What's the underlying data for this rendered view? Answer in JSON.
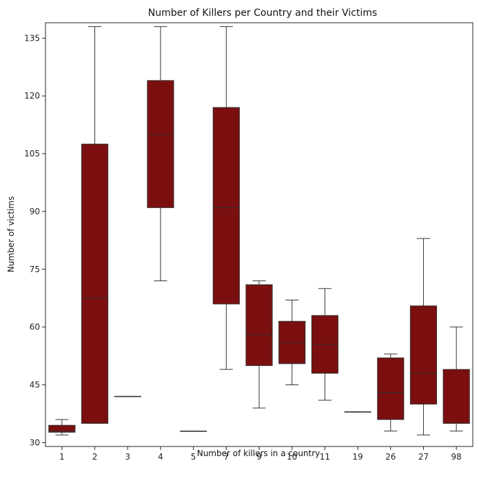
{
  "chart_data": {
    "type": "box",
    "title": "Number of Killers per Country and their Victims",
    "xlabel": "Number of killers in a country",
    "ylabel": "Number of victims",
    "ylim": [
      29,
      139
    ],
    "yticks": [
      30,
      45,
      60,
      75,
      90,
      105,
      120,
      135
    ],
    "color": "#7b0f0f",
    "categories": [
      "1",
      "2",
      "3",
      "4",
      "5",
      "7",
      "9",
      "10",
      "11",
      "19",
      "26",
      "27",
      "98"
    ],
    "boxes": [
      {
        "whisker_low": 32,
        "q1": 32.7,
        "median": 33,
        "q3": 34.5,
        "whisker_high": 36
      },
      {
        "whisker_low": 35,
        "q1": 35,
        "median": 67.5,
        "q3": 107.5,
        "whisker_high": 138
      },
      {
        "whisker_low": 42,
        "q1": 42,
        "median": 42,
        "q3": 42,
        "whisker_high": 42
      },
      {
        "whisker_low": 72,
        "q1": 91,
        "median": 110,
        "q3": 124,
        "whisker_high": 138
      },
      {
        "whisker_low": 33,
        "q1": 33,
        "median": 33,
        "q3": 33,
        "whisker_high": 33
      },
      {
        "whisker_low": 49,
        "q1": 66,
        "median": 91,
        "q3": 117,
        "whisker_high": 138
      },
      {
        "whisker_low": 39,
        "q1": 50,
        "median": 58,
        "q3": 71,
        "whisker_high": 72
      },
      {
        "whisker_low": 45,
        "q1": 50.5,
        "median": 56,
        "q3": 61.5,
        "whisker_high": 67
      },
      {
        "whisker_low": 41,
        "q1": 48,
        "median": 55.5,
        "q3": 63,
        "whisker_high": 70
      },
      {
        "whisker_low": 38,
        "q1": 38,
        "median": 38,
        "q3": 38,
        "whisker_high": 38
      },
      {
        "whisker_low": 33,
        "q1": 36,
        "median": 43,
        "q3": 52,
        "whisker_high": 53
      },
      {
        "whisker_low": 32,
        "q1": 40,
        "median": 48,
        "q3": 65.5,
        "whisker_high": 83
      },
      {
        "whisker_low": 33,
        "q1": 35,
        "median": 35,
        "q3": 49,
        "whisker_high": 60
      }
    ]
  }
}
